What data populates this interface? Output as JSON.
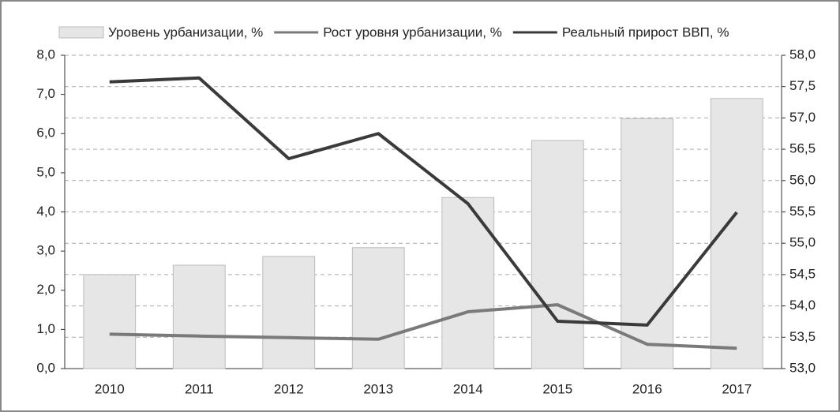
{
  "chart_data": {
    "type": "bar-line",
    "categories": [
      "2010",
      "2011",
      "2012",
      "2013",
      "2014",
      "2015",
      "2016",
      "2017"
    ],
    "series": [
      {
        "name": "Уровень урбанизации, %",
        "type": "bar",
        "axis": "y2",
        "color": "#e6e6e6",
        "values": [
          54.5,
          54.65,
          54.79,
          54.93,
          55.73,
          56.64,
          56.99,
          57.31
        ]
      },
      {
        "name": "Рост уровня урбанизации, %",
        "type": "line",
        "axis": "y",
        "color": "#7a7a7a",
        "values": [
          0.88,
          0.83,
          0.79,
          0.75,
          1.45,
          1.63,
          0.62,
          0.52
        ]
      },
      {
        "name": "Реальный прирост ВВП, %",
        "type": "line",
        "axis": "y",
        "color": "#3a3a3a",
        "values": [
          7.32,
          7.42,
          5.36,
          6.0,
          4.21,
          1.21,
          1.11,
          3.99
        ]
      }
    ],
    "ylim": [
      0,
      8
    ],
    "yticks": [
      {
        "value": 0,
        "label": "0,0"
      },
      {
        "value": 1,
        "label": "1,0"
      },
      {
        "value": 2,
        "label": "2,0"
      },
      {
        "value": 3,
        "label": "3,0"
      },
      {
        "value": 4,
        "label": "4,0"
      },
      {
        "value": 5,
        "label": "5,0"
      },
      {
        "value": 6,
        "label": "6,0"
      },
      {
        "value": 7,
        "label": "7,0"
      },
      {
        "value": 8,
        "label": "8,0"
      }
    ],
    "y2lim": [
      53,
      58
    ],
    "y2ticks": [
      {
        "value": 53,
        "label": "53,0"
      },
      {
        "value": 53.5,
        "label": "53,5"
      },
      {
        "value": 54,
        "label": "54,0"
      },
      {
        "value": 54.5,
        "label": "54,5"
      },
      {
        "value": 55,
        "label": "55,0"
      },
      {
        "value": 55.5,
        "label": "55,5"
      },
      {
        "value": 56,
        "label": "56,0"
      },
      {
        "value": 56.5,
        "label": "56,5"
      },
      {
        "value": 57,
        "label": "57,0"
      },
      {
        "value": 57.5,
        "label": "57,5"
      },
      {
        "value": 58,
        "label": "58,0"
      }
    ],
    "grid": true,
    "legend": "top"
  }
}
